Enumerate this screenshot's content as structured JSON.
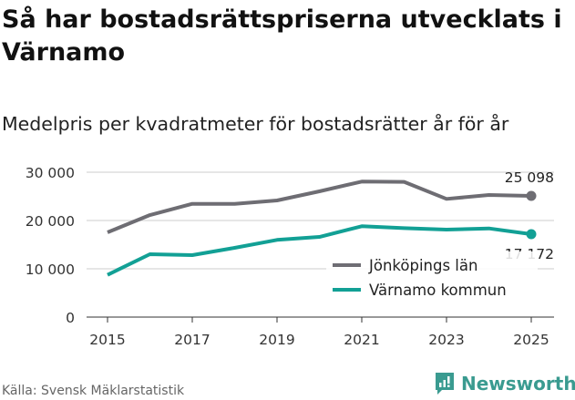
{
  "title": "Så har bostadsrättspriserna utvecklats i Värnamo",
  "subtitle": "Medelpris per kvadratmeter för bostadsrätter år för år",
  "source": "Källa: Svensk Mäklarstatistik",
  "brand": "Newsworthy",
  "chart_data": {
    "type": "line",
    "title": "Medelpris per kvadratmeter för bostadsrätter år för år",
    "xlabel": "",
    "ylabel": "",
    "x": [
      2015,
      2016,
      2017,
      2018,
      2019,
      2020,
      2021,
      2022,
      2023,
      2024,
      2025
    ],
    "x_ticks": [
      "2015",
      "2017",
      "2019",
      "2021",
      "2023",
      "2025"
    ],
    "y_ticks": [
      "0",
      "10 000",
      "20 000",
      "30 000"
    ],
    "y_tick_values": [
      0,
      10000,
      20000,
      30000
    ],
    "ylim": [
      0,
      30000
    ],
    "grid": true,
    "legend_position": "bottom-right",
    "series": [
      {
        "name": "Jönköpings län",
        "color": "#6e6d73",
        "values": [
          17550,
          21130,
          23450,
          23450,
          24150,
          26040,
          28060,
          27990,
          24470,
          25280,
          25098
        ],
        "end_label": "25 098"
      },
      {
        "name": "Värnamo kommun",
        "color": "#12a095",
        "values": [
          8740,
          13020,
          12830,
          14340,
          15980,
          16600,
          18810,
          18430,
          18110,
          18360,
          17172
        ],
        "end_label": "17 172"
      }
    ]
  }
}
